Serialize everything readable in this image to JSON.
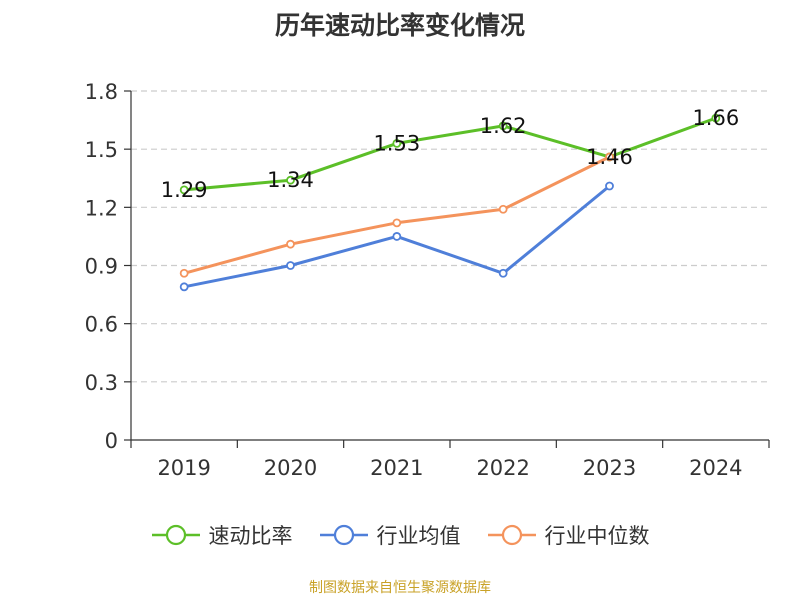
{
  "chart_data": {
    "type": "line",
    "title": "历年速动比率变化情况",
    "categories": [
      "2019",
      "2020",
      "2021",
      "2022",
      "2023",
      "2024"
    ],
    "ylim": [
      0,
      1.8
    ],
    "yticks": [
      "0",
      "0.3",
      "0.6",
      "0.9",
      "1.2",
      "1.5",
      "1.8"
    ],
    "grid": true,
    "legend_position": "bottom",
    "series": [
      {
        "name": "速动比率",
        "color": "#5cbf28",
        "values": [
          1.29,
          1.34,
          1.53,
          1.62,
          1.46,
          1.66
        ],
        "labels": [
          "1.29",
          "1.34",
          "1.53",
          "1.62",
          "1.46",
          "1.66"
        ]
      },
      {
        "name": "行业均值",
        "color": "#4f7fd9",
        "values": [
          0.79,
          0.9,
          1.05,
          0.86,
          1.31,
          null
        ]
      },
      {
        "name": "行业中位数",
        "color": "#f4935c",
        "values": [
          0.86,
          1.01,
          1.12,
          1.19,
          1.46,
          null
        ]
      }
    ]
  },
  "source_note": "制图数据来自恒生聚源数据库"
}
